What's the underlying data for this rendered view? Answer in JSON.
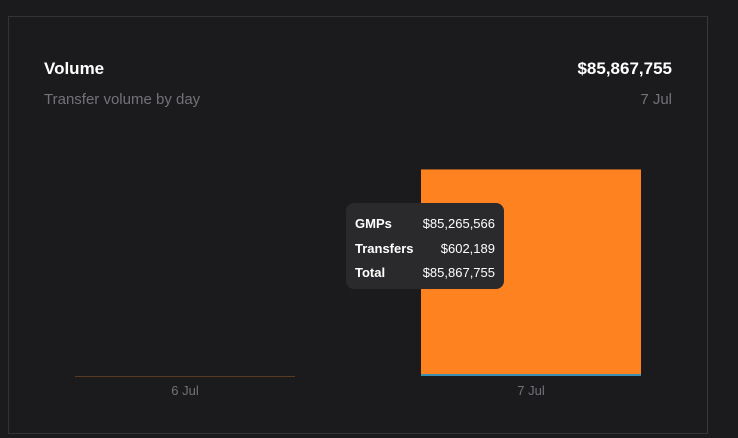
{
  "header": {
    "title": "Volume",
    "subtitle": "Transfer volume by day",
    "total": "$85,867,755",
    "date": "7 Jul"
  },
  "colors": {
    "gmps": "#ff8221",
    "transfers": "#3b8fb0",
    "axis_tick": "#727278"
  },
  "chart_data": {
    "type": "bar",
    "stacked": true,
    "categories": [
      "6 Jul",
      "7 Jul"
    ],
    "series": [
      {
        "name": "GMPs",
        "values": [
          0,
          85265566
        ]
      },
      {
        "name": "Transfers",
        "values": [
          0,
          602189
        ]
      }
    ],
    "ylim": [
      0,
      85867755
    ],
    "grid": false,
    "tooltip": {
      "rows": [
        {
          "label": "GMPs",
          "value": "$85,265,566"
        },
        {
          "label": "Transfers",
          "value": "$602,189"
        },
        {
          "label": "Total",
          "value": "$85,867,755"
        }
      ]
    }
  }
}
